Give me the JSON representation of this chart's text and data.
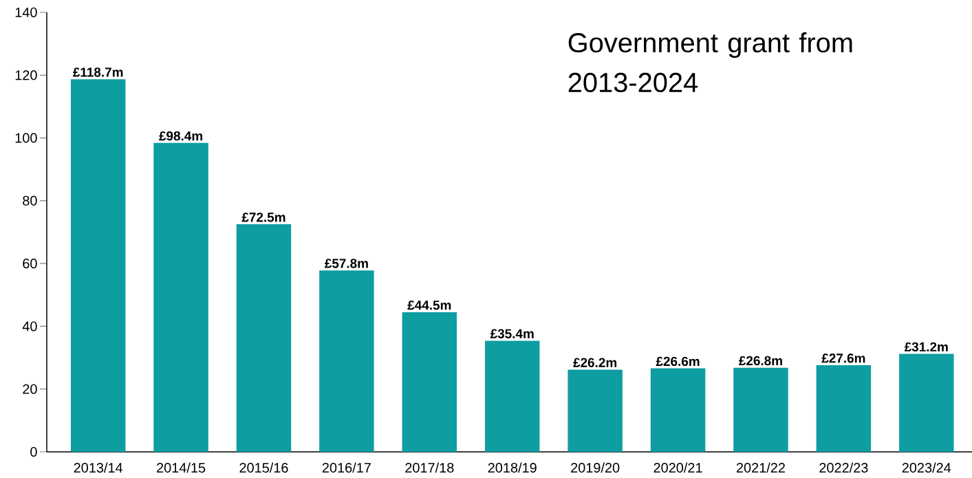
{
  "chart_data": {
    "type": "bar",
    "title": "Government grant from 2013-2024",
    "categories": [
      "2013/14",
      "2014/15",
      "2015/16",
      "2016/17",
      "2017/18",
      "2018/19",
      "2019/20",
      "2020/21",
      "2021/22",
      "2022/23",
      "2023/24"
    ],
    "values": [
      118.7,
      98.4,
      72.5,
      57.8,
      44.5,
      35.4,
      26.2,
      26.6,
      26.8,
      27.6,
      31.2
    ],
    "value_labels": [
      "£118.7m",
      "£98.4m",
      "£72.5m",
      "£57.8m",
      "£44.5m",
      "£35.4m",
      "£26.2m",
      "£26.6m",
      "£26.8m",
      "£27.6m",
      "£31.2m"
    ],
    "color": "#0e9da1",
    "ylim": [
      0,
      140
    ],
    "yticks": [
      0,
      20,
      40,
      60,
      80,
      100,
      120,
      140
    ],
    "grid": false
  }
}
